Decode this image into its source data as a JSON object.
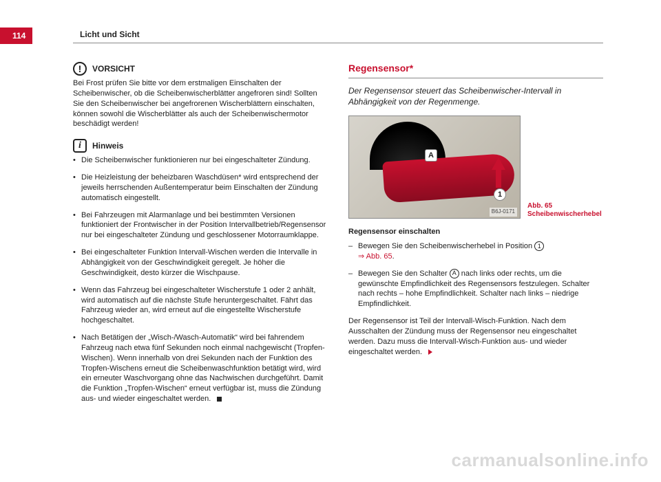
{
  "page": {
    "number": "114",
    "header": "Licht und Sicht"
  },
  "left": {
    "vorsicht": {
      "title": "VORSICHT",
      "icon_glyph": "!",
      "text": "Bei Frost prüfen Sie bitte vor dem erstmaligen Einschalten der Scheibenwischer, ob die Scheibenwischerblätter angefroren sind! Sollten Sie den Scheibenwischer bei angefrorenen Wischerblättern einschalten, können sowohl die Wischerblätter als auch der Scheibenwischermotor beschädigt werden!"
    },
    "hinweis": {
      "title": "Hinweis",
      "icon_glyph": "i",
      "bullets": [
        "Die Scheibenwischer funktionieren nur bei eingeschalteter Zündung.",
        "Die Heizleistung der beheizbaren Waschdüsen* wird entsprechend der jeweils herrschenden Außentemperatur beim Einschalten der Zündung automatisch eingestellt.",
        "Bei Fahrzeugen mit Alarmanlage und bei bestimmten Versionen funktioniert der Frontwischer in der Position Intervallbetrieb/Regensensor nur bei eingeschalteter Zündung und geschlossener Motorraumklappe.",
        "Bei eingeschalteter Funktion Intervall-Wischen werden die Intervalle in Abhängigkeit von der Geschwindigkeit geregelt. Je höher die Geschwindigkeit, desto kürzer die Wischpause.",
        "Wenn das Fahrzeug bei eingeschalteter Wischerstufe 1 oder 2 anhält, wird automatisch auf die nächste Stufe heruntergeschaltet. Fährt das Fahrzeug wieder an, wird erneut auf die eingestellte Wischerstufe hochgeschaltet.",
        "Nach Betätigen der „Wisch-/Wasch-Automatik“ wird bei fahrendem Fahrzeug nach etwa fünf Sekunden noch einmal nachgewischt (Tropfen-Wischen). Wenn innerhalb von drei Sekunden nach der Funktion des Tropfen-Wischens erneut die Scheibenwaschfunktion betätigt wird, wird ein erneuter Waschvorgang ohne das Nachwischen durchgeführt. Damit die Funktion „Tropfen-Wischen“ erneut verfügbar ist, muss die Zündung aus- und wieder eingeschaltet werden."
      ]
    }
  },
  "right": {
    "title": "Regensensor*",
    "lead": "Der Regensensor steuert das Scheibenwischer-Intervall in Abhängigkeit von der Regenmenge.",
    "figure": {
      "id": "B6J-0171",
      "marker_a": "A",
      "marker_1": "1",
      "caption": "Abb. 65   Scheibenwischerhebel"
    },
    "sub_heading": "Regensensor einschalten",
    "steps": {
      "s1_a": "Bewegen Sie den Scheibenwischerhebel in Position ",
      "s1_circ": "1",
      "s1_link": "⇒ Abb. 65",
      "s1_end": ".",
      "s2_a": "Bewegen Sie den Schalter ",
      "s2_circ": "A",
      "s2_b": " nach links oder rechts, um die gewünschte Empfindlichkeit des Regensensors festzulegen. Schalter nach rechts – hohe Empfindlichkeit. Schalter nach links – niedrige Empfindlichkeit."
    },
    "tail": "Der Regensensor ist Teil der Intervall-Wisch-Funktion. Nach dem Ausschalten der Zündung muss der Regensensor neu eingeschaltet werden. Dazu muss die Intervall-Wisch-Funktion aus- und wieder eingeschaltet werden."
  },
  "watermark": "carmanualsonline.info"
}
